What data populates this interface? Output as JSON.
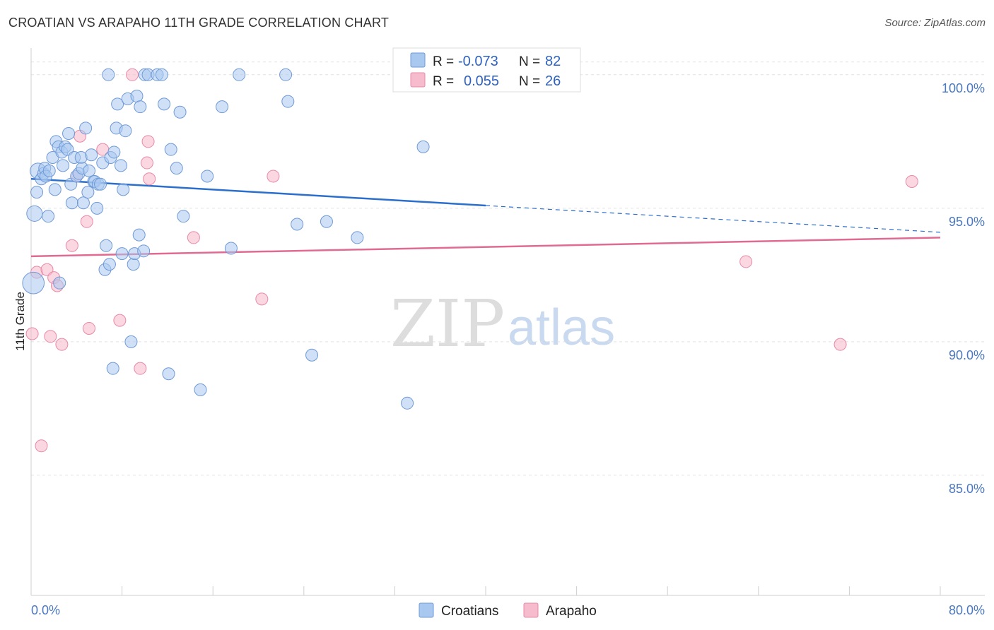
{
  "title": "CROATIAN VS ARAPAHO 11TH GRADE CORRELATION CHART",
  "source": "Source: ZipAtlas.com",
  "watermark": {
    "zip": "ZIP",
    "atlas": "atlas"
  },
  "colors": {
    "croatians_fill": "#a9c8f0",
    "croatians_stroke": "#6f9ad6",
    "croatians_line": "#2b6fcc",
    "arapaho_fill": "#f6bccd",
    "arapaho_stroke": "#e88aa8",
    "arapaho_line": "#e06a92",
    "grid": "#e2e2e2",
    "tick_label": "#4a78c2"
  },
  "legend_top": {
    "rows": [
      {
        "r_label": "R =",
        "r_value": "-0.073",
        "n_label": "N =",
        "n_value": "82"
      },
      {
        "r_label": "R =",
        "r_value": "0.055",
        "n_label": "N =",
        "n_value": "26"
      }
    ]
  },
  "chart_data": {
    "type": "scatter",
    "title": "CROATIAN VS ARAPAHO 11TH GRADE CORRELATION CHART",
    "xlabel": "",
    "ylabel": "11th Grade",
    "xlim": [
      0,
      80
    ],
    "ylim": [
      80.5,
      101
    ],
    "x_tick_labels": [
      "0.0%",
      "80.0%"
    ],
    "y_ticks": [
      85,
      90,
      95,
      100
    ],
    "y_tick_labels": [
      "85.0%",
      "90.0%",
      "95.0%",
      "100.0%"
    ],
    "grid": true,
    "legend_position": "bottom-center",
    "series": [
      {
        "name": "Croatians",
        "R": -0.073,
        "N": 82,
        "trend": {
          "x0": 0,
          "y0": 96.1,
          "x1": 40,
          "y1": 95.1,
          "dashed_to": 80,
          "dashed_y": 94.1
        },
        "points": [
          [
            0.2,
            92.2,
            1.8
          ],
          [
            0.3,
            94.8,
            1.3
          ],
          [
            0.5,
            95.6,
            1
          ],
          [
            0.6,
            96.4,
            1.3
          ],
          [
            0.9,
            96.1,
            1
          ],
          [
            1.1,
            96.3,
            1
          ],
          [
            1.2,
            96.5,
            1
          ],
          [
            1.3,
            96.2,
            1
          ],
          [
            1.5,
            94.7,
            1
          ],
          [
            1.6,
            96.4,
            1
          ],
          [
            1.9,
            96.9,
            1
          ],
          [
            2.1,
            95.7,
            1
          ],
          [
            2.2,
            97.5,
            1
          ],
          [
            2.4,
            97.3,
            1
          ],
          [
            2.5,
            92.2,
            1
          ],
          [
            2.7,
            97.1,
            1
          ],
          [
            2.8,
            96.6,
            1
          ],
          [
            3.0,
            97.3,
            1
          ],
          [
            3.2,
            97.2,
            1
          ],
          [
            3.3,
            97.8,
            1
          ],
          [
            3.5,
            95.9,
            1
          ],
          [
            3.6,
            95.2,
            1
          ],
          [
            3.8,
            96.9,
            1
          ],
          [
            4.0,
            96.2,
            1
          ],
          [
            4.2,
            96.3,
            1
          ],
          [
            4.4,
            96.9,
            1
          ],
          [
            4.5,
            96.5,
            1
          ],
          [
            4.6,
            95.2,
            1
          ],
          [
            4.8,
            98.0,
            1
          ],
          [
            5.0,
            95.6,
            1
          ],
          [
            5.1,
            96.4,
            1
          ],
          [
            5.3,
            97.0,
            1
          ],
          [
            5.5,
            96.0,
            1
          ],
          [
            5.6,
            96.0,
            1
          ],
          [
            5.8,
            95.0,
            1
          ],
          [
            5.9,
            95.9,
            1
          ],
          [
            6.1,
            95.9,
            1
          ],
          [
            6.3,
            96.7,
            1
          ],
          [
            6.5,
            92.7,
            1
          ],
          [
            6.6,
            93.6,
            1
          ],
          [
            6.8,
            100.0,
            1
          ],
          [
            6.9,
            92.9,
            1
          ],
          [
            7.0,
            96.9,
            1
          ],
          [
            7.3,
            97.1,
            1
          ],
          [
            7.5,
            98.0,
            1
          ],
          [
            7.6,
            98.9,
            1
          ],
          [
            7.9,
            96.6,
            1
          ],
          [
            8.0,
            93.3,
            1
          ],
          [
            8.1,
            95.7,
            1
          ],
          [
            8.3,
            97.9,
            1
          ],
          [
            8.5,
            99.1,
            1
          ],
          [
            8.8,
            90.0,
            1
          ],
          [
            9.0,
            92.9,
            1
          ],
          [
            9.1,
            93.3,
            1
          ],
          [
            9.3,
            99.2,
            1
          ],
          [
            9.5,
            94.0,
            1
          ],
          [
            9.6,
            98.8,
            1
          ],
          [
            9.9,
            93.4,
            1
          ],
          [
            10.0,
            100.0,
            1
          ],
          [
            10.3,
            100.0,
            1
          ],
          [
            11.1,
            100.0,
            1
          ],
          [
            11.5,
            100.0,
            1
          ],
          [
            11.7,
            98.9,
            1
          ],
          [
            12.1,
            88.8,
            1
          ],
          [
            12.3,
            97.2,
            1
          ],
          [
            12.8,
            96.5,
            1
          ],
          [
            13.1,
            98.6,
            1
          ],
          [
            13.4,
            94.7,
            1
          ],
          [
            14.9,
            88.2,
            1
          ],
          [
            15.5,
            96.2,
            1
          ],
          [
            16.8,
            98.8,
            1
          ],
          [
            17.6,
            93.5,
            1
          ],
          [
            18.3,
            100.0,
            1
          ],
          [
            22.4,
            100.0,
            1
          ],
          [
            22.6,
            99.0,
            1
          ],
          [
            23.4,
            94.4,
            1
          ],
          [
            24.7,
            89.5,
            1
          ],
          [
            26.0,
            94.5,
            1
          ],
          [
            28.7,
            93.9,
            1
          ],
          [
            33.1,
            87.7,
            1
          ],
          [
            34.5,
            97.3,
            1
          ],
          [
            7.2,
            89.0,
            1
          ]
        ]
      },
      {
        "name": "Arapaho",
        "R": 0.055,
        "N": 26,
        "trend": {
          "x0": 0,
          "y0": 93.2,
          "x1": 80,
          "y1": 93.9
        },
        "points": [
          [
            0.1,
            90.3,
            1
          ],
          [
            0.5,
            92.6,
            1
          ],
          [
            0.9,
            86.1,
            1
          ],
          [
            1.4,
            92.7,
            1
          ],
          [
            1.7,
            90.2,
            1
          ],
          [
            2.0,
            92.4,
            1
          ],
          [
            2.3,
            92.1,
            1
          ],
          [
            2.7,
            89.9,
            1
          ],
          [
            3.6,
            93.6,
            1
          ],
          [
            4.0,
            96.2,
            1
          ],
          [
            4.3,
            97.7,
            1
          ],
          [
            4.9,
            94.5,
            1
          ],
          [
            5.1,
            90.5,
            1
          ],
          [
            6.3,
            97.2,
            1
          ],
          [
            7.8,
            90.8,
            1
          ],
          [
            8.9,
            100.0,
            1
          ],
          [
            9.6,
            89.0,
            1
          ],
          [
            10.2,
            96.7,
            1
          ],
          [
            10.3,
            97.5,
            1
          ],
          [
            10.4,
            96.1,
            1
          ],
          [
            14.3,
            93.9,
            1
          ],
          [
            20.3,
            91.6,
            1
          ],
          [
            21.3,
            96.2,
            1
          ],
          [
            62.9,
            93.0,
            1
          ],
          [
            71.2,
            89.9,
            1
          ],
          [
            77.5,
            96.0,
            1
          ]
        ]
      }
    ]
  },
  "legend_bottom": [
    {
      "label": "Croatians"
    },
    {
      "label": "Arapaho"
    }
  ]
}
